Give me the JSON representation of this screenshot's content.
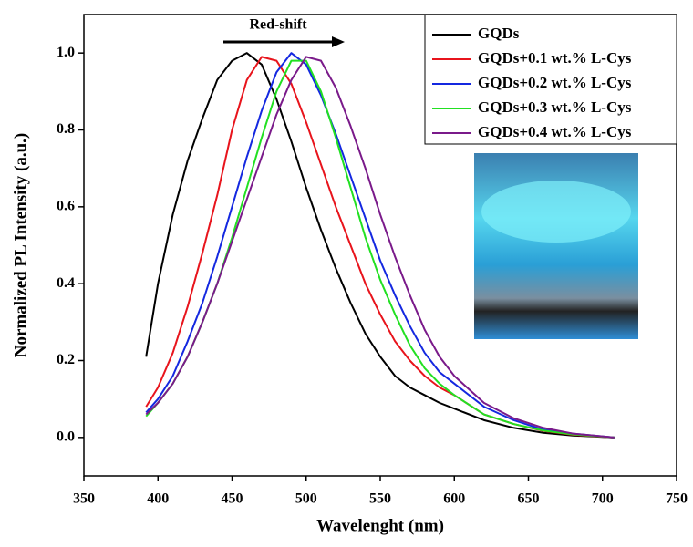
{
  "chart_data": {
    "type": "line",
    "xlabel": "Wavelenght (nm)",
    "ylabel": "Normalized PL Intensity (a.u.)",
    "annotation": "Red-shift",
    "x": [
      392,
      400,
      410,
      420,
      430,
      440,
      450,
      460,
      470,
      480,
      490,
      500,
      510,
      520,
      530,
      540,
      550,
      560,
      570,
      580,
      590,
      600,
      620,
      640,
      660,
      680,
      708
    ],
    "series": [
      {
        "name": "GQDs",
        "color": "#000000",
        "values": [
          0.21,
          0.4,
          0.58,
          0.72,
          0.83,
          0.93,
          0.98,
          1.0,
          0.97,
          0.88,
          0.77,
          0.65,
          0.54,
          0.44,
          0.35,
          0.27,
          0.21,
          0.16,
          0.13,
          0.11,
          0.09,
          0.075,
          0.045,
          0.025,
          0.012,
          0.005,
          0
        ]
      },
      {
        "name": "GQDs+0.1 wt.% L-Cys",
        "color": "#e8141c",
        "values": [
          0.08,
          0.13,
          0.22,
          0.34,
          0.48,
          0.63,
          0.8,
          0.93,
          0.99,
          0.98,
          0.92,
          0.82,
          0.71,
          0.6,
          0.5,
          0.4,
          0.32,
          0.25,
          0.2,
          0.16,
          0.13,
          0.11,
          0.06,
          0.035,
          0.017,
          0.007,
          0
        ]
      },
      {
        "name": "GQDs+0.2 wt.% L-Cys",
        "color": "#1428e0",
        "values": [
          0.065,
          0.1,
          0.16,
          0.25,
          0.35,
          0.47,
          0.6,
          0.73,
          0.85,
          0.95,
          1.0,
          0.97,
          0.89,
          0.79,
          0.68,
          0.57,
          0.46,
          0.37,
          0.29,
          0.22,
          0.17,
          0.14,
          0.08,
          0.045,
          0.02,
          0.01,
          0
        ]
      },
      {
        "name": "GQDs+0.3 wt.% L-Cys",
        "color": "#22e022",
        "values": [
          0.055,
          0.09,
          0.14,
          0.21,
          0.3,
          0.4,
          0.52,
          0.65,
          0.78,
          0.9,
          0.98,
          0.98,
          0.9,
          0.78,
          0.65,
          0.52,
          0.41,
          0.32,
          0.24,
          0.18,
          0.14,
          0.11,
          0.06,
          0.035,
          0.018,
          0.008,
          0
        ]
      },
      {
        "name": "GQDs+0.4 wt.% L-Cys",
        "color": "#7a1a8a",
        "values": [
          0.06,
          0.09,
          0.14,
          0.21,
          0.3,
          0.4,
          0.51,
          0.62,
          0.73,
          0.84,
          0.93,
          0.99,
          0.98,
          0.91,
          0.81,
          0.7,
          0.58,
          0.47,
          0.37,
          0.28,
          0.21,
          0.16,
          0.09,
          0.05,
          0.025,
          0.01,
          0
        ]
      }
    ],
    "xlim": [
      350,
      750
    ],
    "xticks": [
      350,
      400,
      450,
      500,
      550,
      600,
      650,
      700,
      750
    ],
    "ylim": [
      -0.1,
      1.1
    ],
    "yticks": [
      {
        "value": 0,
        "label": "0.0"
      },
      0.2,
      0.4,
      0.6,
      0.8,
      {
        "value": 1,
        "label": "1.0"
      }
    ],
    "grid": false
  }
}
